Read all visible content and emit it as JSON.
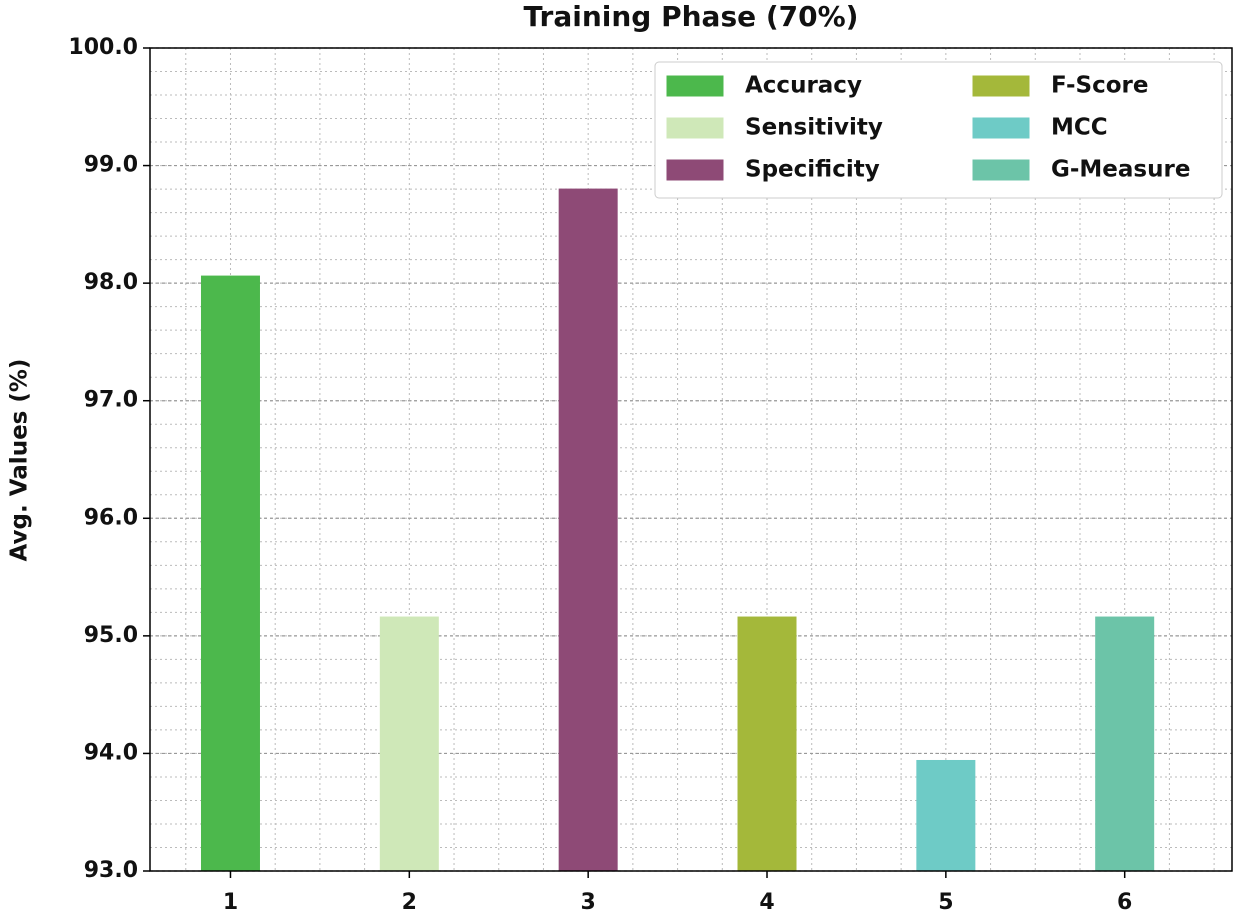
{
  "chart_data": {
    "type": "bar",
    "title": "Training Phase (70%)",
    "y_label": "Avg. Values (%)",
    "categories": [
      "1",
      "2",
      "3",
      "4",
      "5",
      "6"
    ],
    "series": [
      {
        "name": "Accuracy",
        "color": "#4cb84c",
        "values": [
          98.06,
          null,
          null,
          null,
          null,
          null
        ]
      },
      {
        "name": "Sensitivity",
        "color": "#cfe8b8",
        "values": [
          null,
          95.16,
          null,
          null,
          null,
          null
        ]
      },
      {
        "name": "Specificity",
        "color": "#8e4a76",
        "values": [
          null,
          null,
          98.8,
          null,
          null,
          null
        ]
      },
      {
        "name": "F-Score",
        "color": "#a4b83a",
        "values": [
          null,
          null,
          null,
          95.16,
          null,
          null
        ]
      },
      {
        "name": "MCC",
        "color": "#6ecbc6",
        "values": [
          null,
          null,
          null,
          null,
          93.94,
          null
        ]
      },
      {
        "name": "G-Measure",
        "color": "#6cc4a8",
        "values": [
          null,
          null,
          null,
          null,
          null,
          95.16
        ]
      }
    ],
    "ylim": [
      93,
      100
    ],
    "yticks": [
      {
        "value": 93,
        "label": "93.0"
      },
      {
        "value": 94,
        "label": "94.0"
      },
      {
        "value": 95,
        "label": "95.0"
      },
      {
        "value": 96,
        "label": "96.0"
      },
      {
        "value": 97,
        "label": "97.0"
      },
      {
        "value": 98,
        "label": "98.0"
      },
      {
        "value": 99,
        "label": "99.0"
      },
      {
        "value": 100,
        "label": "100.0"
      }
    ],
    "grid": true,
    "legend_position": "upper right"
  }
}
